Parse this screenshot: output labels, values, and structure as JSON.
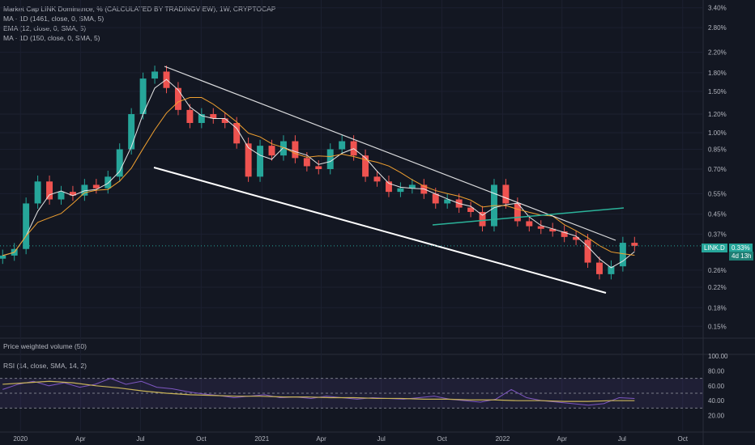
{
  "legend": {
    "title": "Market Cap LINK Dominance, % (CALCULATED BY TRADINGVIEW), 1W, CRYPTOCAP",
    "ma1": "MA · 1D (1461, close, 0, SMA, 5)",
    "ema": "EMA (12, close, 0, SMA, 5)",
    "ma2": "MA · 1D (150, close, 0, SMA, 5)",
    "volume": "Price weighted volume (50)",
    "rsi": "RSI (14, close, SMA, 14, 2)"
  },
  "price_axis": [
    "3.40%",
    "2.80%",
    "2.20%",
    "1.80%",
    "1.50%",
    "1.20%",
    "1.00%",
    "0.85%",
    "0.70%",
    "0.55%",
    "0.45%",
    "0.37%",
    "0.26%",
    "0.22%",
    "0.18%",
    "0.15%"
  ],
  "rsi_axis": [
    "100.00",
    "80.00",
    "60.00",
    "40.00",
    "20.00"
  ],
  "time_axis": [
    "2020",
    "Apr",
    "Jul",
    "Oct",
    "2021",
    "Apr",
    "Jul",
    "Oct",
    "2022",
    "Apr",
    "Jul",
    "Oct"
  ],
  "symbol": {
    "name": "LINK.D",
    "last": "0.33%",
    "countdown": "4d 13h"
  },
  "colors": {
    "up": "#26a69a",
    "down": "#ef5350",
    "ema": "#f0a030",
    "ma": "#e6e6e6",
    "rsi": "#7e57c2",
    "rsi_ma": "#c9b458",
    "channel": "#ffffff",
    "trendline": "#2bb39a"
  },
  "chart_data": {
    "type": "candlestick",
    "y_scale": "log",
    "ylim_percent": [
      0.14,
      3.5
    ],
    "x_range": [
      "2019-12-01",
      "2022-11-01"
    ],
    "close_percent_approx": [
      0.3,
      0.32,
      0.5,
      0.62,
      0.52,
      0.56,
      0.54,
      0.6,
      0.58,
      0.65,
      0.85,
      1.2,
      1.7,
      1.82,
      1.55,
      1.25,
      1.1,
      1.2,
      1.15,
      1.1,
      0.9,
      0.65,
      0.88,
      0.8,
      0.92,
      0.78,
      0.72,
      0.7,
      0.85,
      0.92,
      0.8,
      0.65,
      0.62,
      0.56,
      0.58,
      0.6,
      0.55,
      0.5,
      0.52,
      0.48,
      0.46,
      0.4,
      0.6,
      0.5,
      0.42,
      0.4,
      0.39,
      0.38,
      0.36,
      0.35,
      0.28,
      0.25,
      0.27,
      0.34,
      0.33
    ],
    "rsi_ylim": [
      0,
      100
    ],
    "rsi_levels": [
      70,
      50,
      30
    ],
    "rsi_values_approx": [
      55,
      62,
      66,
      60,
      64,
      58,
      62,
      70,
      62,
      66,
      58,
      56,
      52,
      49,
      47,
      44,
      46,
      48,
      44,
      45,
      43,
      46,
      44,
      42,
      44,
      43,
      42,
      44,
      46,
      42,
      40,
      38,
      42,
      55,
      44,
      40,
      38,
      36,
      34,
      36,
      44,
      43
    ],
    "rsi_ma_approx": [
      62,
      64,
      66,
      64,
      60,
      57,
      53,
      50,
      48,
      47,
      46,
      46,
      45,
      45,
      44,
      44,
      43,
      43,
      42,
      42,
      41,
      41,
      40,
      40,
      39,
      39,
      40,
      40
    ]
  }
}
